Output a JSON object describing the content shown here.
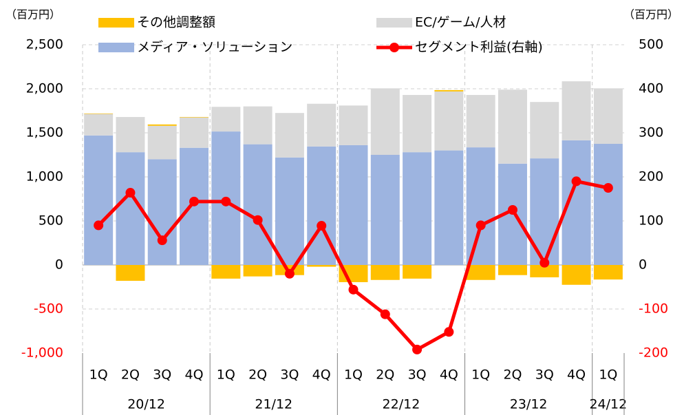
{
  "chart_data": {
    "type": "bar-line",
    "y_unit": "（百万円）",
    "y2_unit": "（百万円）",
    "category_groups": [
      {
        "name": "20/12",
        "categories": [
          "1Q",
          "2Q",
          "3Q",
          "4Q"
        ]
      },
      {
        "name": "21/12",
        "categories": [
          "1Q",
          "2Q",
          "3Q",
          "4Q"
        ]
      },
      {
        "name": "22/12",
        "categories": [
          "1Q",
          "2Q",
          "3Q",
          "4Q"
        ]
      },
      {
        "name": "23/12",
        "categories": [
          "1Q",
          "2Q",
          "3Q",
          "4Q"
        ]
      },
      {
        "name": "24/12",
        "categories": [
          "1Q"
        ]
      }
    ],
    "series": [
      {
        "name": "その他調整額",
        "type": "bar",
        "color": "#ffc000",
        "values": [
          5,
          -180,
          15,
          5,
          -155,
          -130,
          -115,
          -20,
          -195,
          -170,
          -155,
          15,
          -170,
          -115,
          -140,
          -225,
          -165
        ]
      },
      {
        "name": "EC/ゲーム/人材",
        "type": "bar",
        "color": "#d9d9d9",
        "values": [
          245,
          400,
          380,
          345,
          280,
          430,
          505,
          485,
          450,
          755,
          650,
          670,
          595,
          840,
          640,
          670,
          630
        ]
      },
      {
        "name": "メディア・ソリューション",
        "type": "bar",
        "color": "#9db4e0",
        "values": [
          1470,
          1280,
          1200,
          1330,
          1515,
          1370,
          1220,
          1345,
          1360,
          1250,
          1280,
          1300,
          1335,
          1150,
          1210,
          1415,
          1375
        ]
      },
      {
        "name": "セグメント利益(右軸)",
        "type": "line",
        "axis": "y2",
        "color": "#ff0000",
        "values": [
          90,
          164,
          56,
          144,
          144,
          102,
          -20,
          89,
          -56,
          -112,
          -192,
          -152,
          90,
          125,
          5,
          190,
          175
        ]
      }
    ],
    "ylim": [
      -1000,
      2500
    ],
    "yticks": [
      {
        "value": -1000,
        "label": "-1,000"
      },
      -500,
      0,
      500,
      {
        "value": 1000,
        "label": "1,000"
      },
      {
        "value": 1500,
        "label": "1,500"
      },
      {
        "value": 2000,
        "label": "2,000"
      },
      {
        "value": 2500,
        "label": "2,500"
      }
    ],
    "y2lim": [
      -200,
      500
    ],
    "y2ticks": [
      -200,
      -100,
      0,
      100,
      200,
      300,
      400,
      500
    ],
    "negative_tick_color": "#ff0000",
    "grid": true
  }
}
